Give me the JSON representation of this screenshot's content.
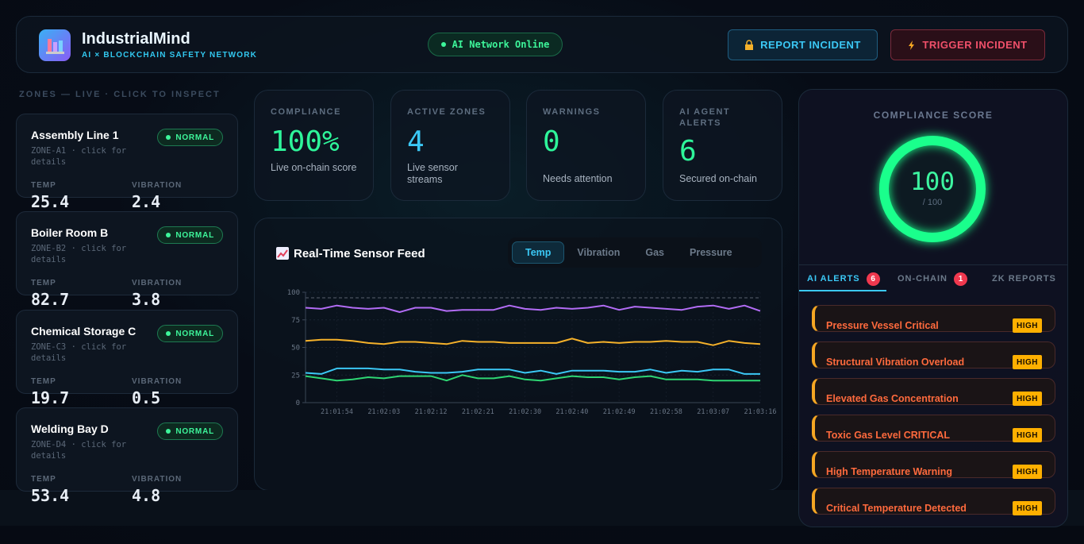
{
  "header": {
    "title": "IndustrialMind",
    "subtitle": "AI × BLOCKCHAIN SAFETY NETWORK",
    "status": "AI Network Online",
    "buttons": [
      "REPORT INCIDENT",
      "TRIGGER INCIDENT"
    ]
  },
  "zones": {
    "heading": "ZONES — LIVE · CLICK TO INSPECT",
    "items": [
      {
        "name": "Assembly Line 1",
        "id": "ZONE-A1 · click for details",
        "status": "NORMAL",
        "temp_label": "TEMP",
        "vibration_label": "VIBRATION",
        "temp": 25.4,
        "vibration": 2.4
      },
      {
        "name": "Boiler Room B",
        "id": "ZONE-B2 · click for details",
        "status": "NORMAL",
        "temp_label": "TEMP",
        "vibration_label": "VIBRATION",
        "temp": 82.7,
        "vibration": 3.8
      },
      {
        "name": "Chemical Storage C",
        "id": "ZONE-C3 · click for details",
        "status": "NORMAL",
        "temp_label": "TEMP",
        "vibration_label": "VIBRATION",
        "temp": 19.7,
        "vibration": 0.5
      },
      {
        "name": "Welding Bay D",
        "id": "ZONE-D4 · click for details",
        "status": "NORMAL",
        "temp_label": "TEMP",
        "vibration_label": "VIBRATION",
        "temp": 53.4,
        "vibration": 4.8
      }
    ]
  },
  "stats": [
    {
      "label": "COMPLIANCE",
      "value": "100%",
      "note": "Live on-chain score"
    },
    {
      "label": "ACTIVE ZONES",
      "value": 4,
      "note": "Live sensor streams"
    },
    {
      "label": "WARNINGS",
      "value": 0,
      "note": "Needs attention"
    },
    {
      "label": "AI AGENT ALERTS",
      "value": 6,
      "note": "Secured on-chain"
    }
  ],
  "chart": {
    "type": "line",
    "title": "Real-Time Sensor Feed",
    "tabs": [
      "Temp",
      "Vibration",
      "Gas",
      "Pressure"
    ],
    "categories": [
      null,
      null,
      "21:01:54",
      null,
      null,
      "21:02:03",
      null,
      null,
      "21:02:12",
      null,
      null,
      "21:02:21",
      null,
      null,
      "21:02:30",
      null,
      null,
      "21:02:40",
      null,
      null,
      "21:02:49",
      null,
      null,
      "21:02:58",
      null,
      null,
      "21:03:07",
      null,
      null,
      "21:03:16"
    ],
    "ylim": [
      0,
      100
    ],
    "yticks": [
      0,
      25,
      50,
      75,
      100
    ],
    "threshold": 95,
    "series": [
      {
        "color": "#b26cf5",
        "values": [
          86,
          85,
          88,
          86,
          85,
          86,
          82,
          86,
          86,
          83,
          84,
          84,
          84,
          88,
          85,
          84,
          86,
          85,
          86,
          88,
          84,
          87,
          86,
          85,
          84,
          87,
          88,
          85,
          88,
          83
        ]
      },
      {
        "color": "#f5b12a",
        "values": [
          56,
          57,
          57,
          56,
          54,
          53,
          55,
          55,
          54,
          53,
          56,
          55,
          55,
          54,
          54,
          54,
          54,
          58,
          54,
          55,
          54,
          55,
          55,
          56,
          55,
          55,
          52,
          56,
          54,
          53
        ]
      },
      {
        "color": "#3bc8f5",
        "values": [
          27,
          26,
          31,
          31,
          31,
          30,
          30,
          28,
          27,
          27,
          28,
          30,
          30,
          30,
          27,
          29,
          26,
          29,
          29,
          29,
          28,
          28,
          30,
          27,
          29,
          28,
          30,
          30,
          26,
          26
        ]
      },
      {
        "color": "#2ed573",
        "values": [
          24,
          22,
          20,
          21,
          23,
          22,
          24,
          24,
          24,
          20,
          25,
          22,
          22,
          24,
          21,
          20,
          22,
          24,
          23,
          23,
          21,
          23,
          24,
          21,
          21,
          21,
          20,
          20,
          20,
          20
        ]
      }
    ]
  },
  "score": {
    "title": "COMPLIANCE SCORE",
    "value": 100,
    "max": 100,
    "max_label": "/ 100"
  },
  "tabs": [
    {
      "label": "AI ALERTS",
      "count": 6
    },
    {
      "label": "ON-CHAIN",
      "count": 1
    },
    {
      "label": "ZK REPORTS"
    }
  ],
  "alerts": [
    {
      "title": "Pressure Vessel Critical",
      "severity": "HIGH"
    },
    {
      "title": "Structural Vibration Overload",
      "severity": "HIGH"
    },
    {
      "title": "Elevated Gas Concentration",
      "severity": "HIGH"
    },
    {
      "title": "Toxic Gas Level CRITICAL",
      "severity": "HIGH"
    },
    {
      "title": "High Temperature Warning",
      "severity": "HIGH"
    },
    {
      "title": "Critical Temperature Detected",
      "severity": "HIGH"
    }
  ]
}
